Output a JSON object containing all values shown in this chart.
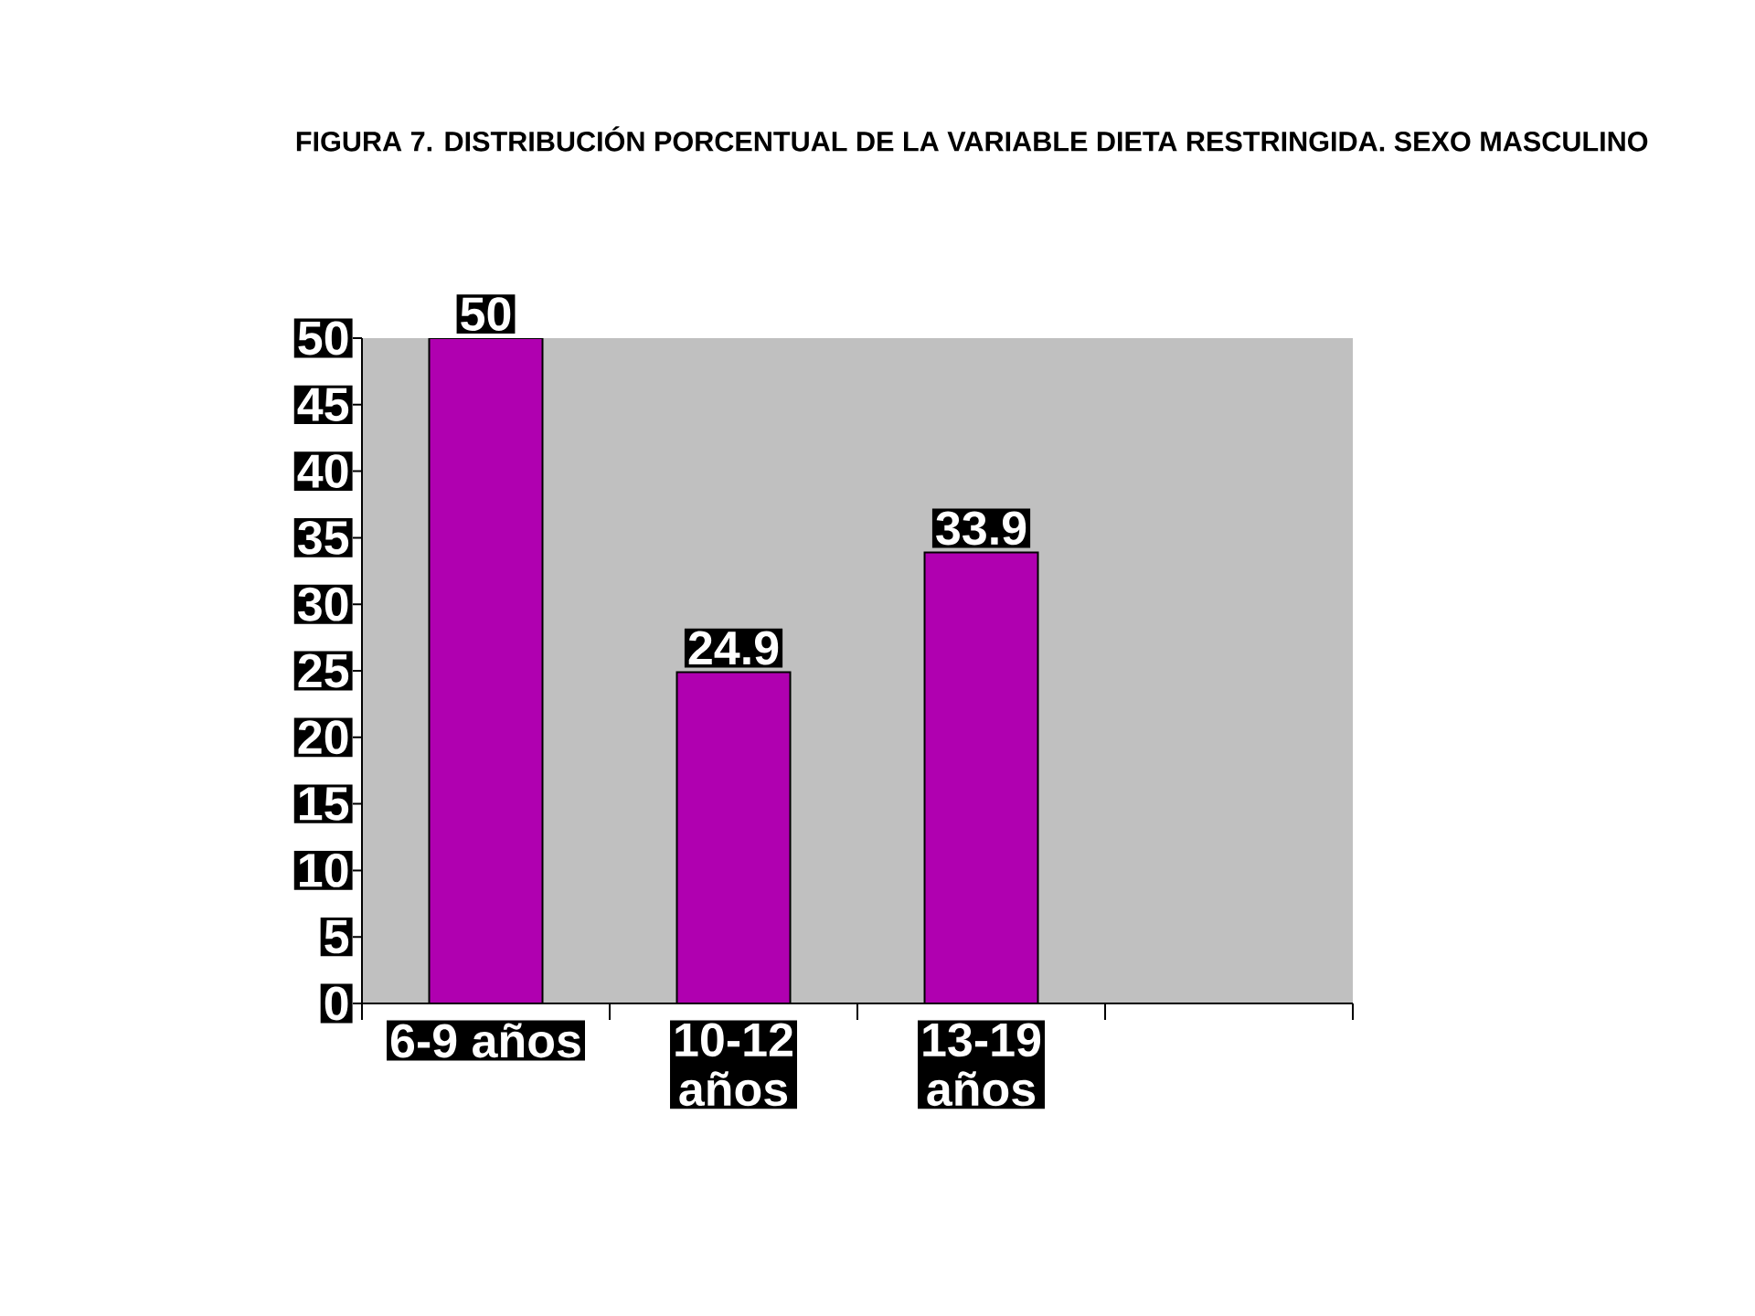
{
  "chart_data": {
    "type": "bar",
    "title": "FIGURA 7. DISTRIBUCIÓN PORCENTUAL DE LA VARIABLE DIETA RESTRINGIDA. SEXO MASCULINO",
    "categories": [
      "6-9 años",
      "10-12 años",
      "13-19 años",
      null
    ],
    "values": [
      50,
      24.9,
      33.9,
      null
    ],
    "color": "#b000b0",
    "ylim": [
      0,
      50
    ],
    "yticks": [
      0,
      5,
      10,
      15,
      20,
      25,
      30,
      35,
      40,
      45,
      50
    ],
    "data_labels": true
  }
}
